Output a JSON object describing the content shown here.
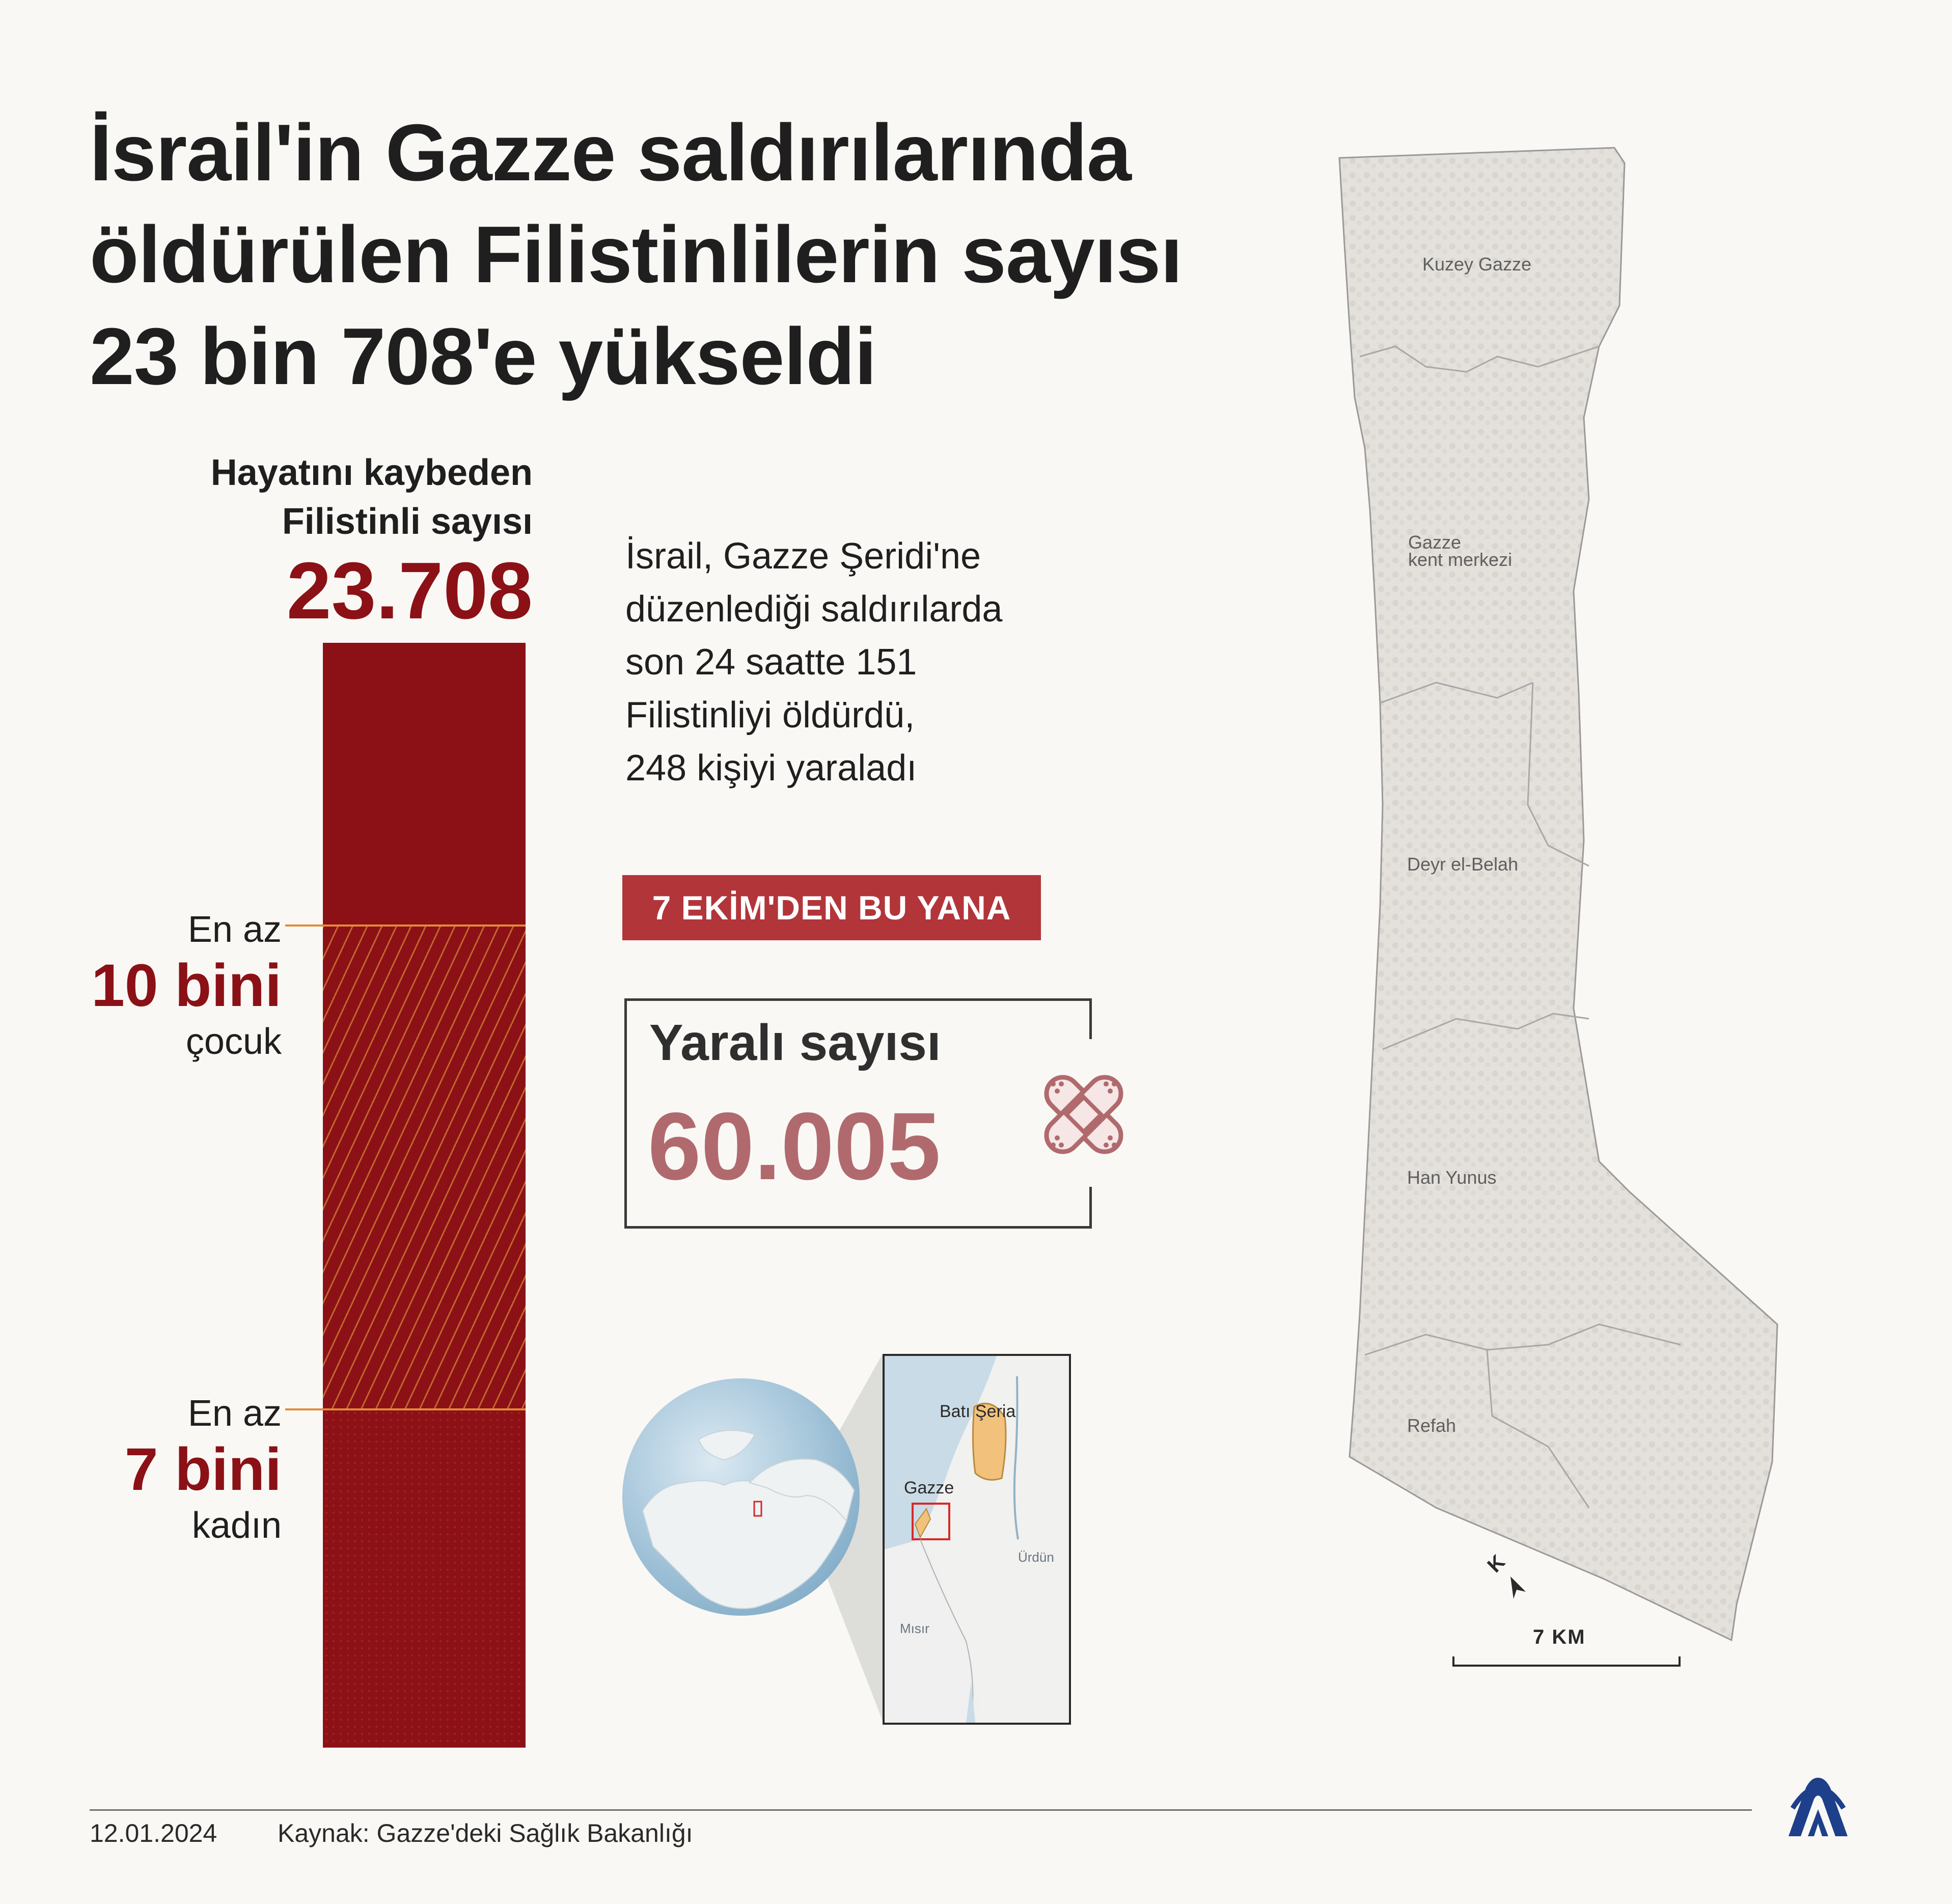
{
  "title_lines": [
    "İsrail'in Gazze saldırılarında",
    "öldürülen Filistinlilerin sayısı",
    "23 bin 708'e yükseldi"
  ],
  "bar": {
    "caption_line1": "Hayatını kaybeden",
    "caption_line2": "Filistinli sayısı",
    "total": "23.708",
    "total_value": 23708,
    "children": {
      "pre": "En az",
      "value": "10 bini",
      "post": "çocuk",
      "count": 10000
    },
    "women": {
      "pre": "En az",
      "value": "7 bini",
      "post": "kadın",
      "count": 7000
    },
    "colors": {
      "bar": "#8b1116",
      "marker": "#e48a3a"
    }
  },
  "description_lines": [
    "İsrail, Gazze Şeridi'ne",
    "düzenlediği saldırılarda",
    "son 24 saatte 151",
    "Filistinliyi öldürdü,",
    "248 kişiyi yaraladı"
  ],
  "badge": "7 EKİM'DEN  BU YANA",
  "wounded": {
    "label": "Yaralı sayısı",
    "value": "60.005",
    "icon": "bandage-icon"
  },
  "inset_map": {
    "west_bank": "Batı Şeria",
    "gaza": "Gazze",
    "jordan": "Ürdün",
    "egypt": "Mısır"
  },
  "gaza_map": {
    "regions": [
      "Kuzey Gazze",
      "Gazze kent merkezi",
      "Deyr el-Belah",
      "Han Yunus",
      "Refah"
    ],
    "region_lines": {
      "north": "Kuzey Gazze",
      "city_1": "Gazze",
      "city_2": "kent merkezi",
      "deir": "Deyr el-Belah",
      "khan": "Han Yunus",
      "rafah": "Refah"
    },
    "north_arrow": "K",
    "scale": "7 KM"
  },
  "footer": {
    "date": "12.01.2024",
    "source": "Kaynak: Gazze'deki Sağlık Bakanlığı",
    "logo": "AA"
  }
}
